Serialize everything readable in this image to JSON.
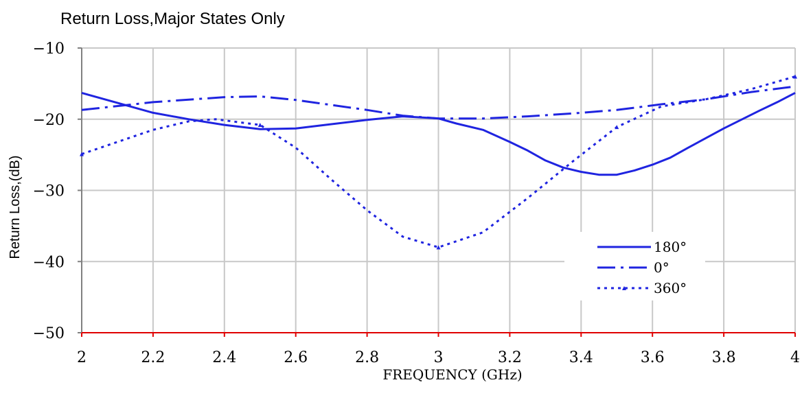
{
  "chart_data": {
    "type": "line",
    "title": "Return Loss,Major States Only",
    "xlabel": "FREQUENCY (GHz)",
    "ylabel": "Return Loss,(dB)",
    "xlim": [
      2,
      4
    ],
    "ylim": [
      -50,
      -10
    ],
    "x_ticks": [
      2,
      2.2,
      2.4,
      2.6,
      2.8,
      3,
      3.2,
      3.4,
      3.6,
      3.8,
      4
    ],
    "x_tick_labels": [
      "2",
      "2.2",
      "2.4",
      "2.6",
      "2.8",
      "3",
      "3.2",
      "3.4",
      "3.6",
      "3.8",
      "4"
    ],
    "y_ticks": [
      -50,
      -40,
      -30,
      -20,
      -10
    ],
    "y_tick_labels": [
      "−50",
      "−40",
      "−30",
      "−20",
      "−10"
    ],
    "grid": true,
    "legend_position": "lower-right",
    "colors": {
      "series": "#1f24e0",
      "grid": "#c8c8c8",
      "baseline": "#e00000",
      "axis": "#808080"
    },
    "series": [
      {
        "name": "180°",
        "style": "solid",
        "x": [
          2.0,
          2.1,
          2.2,
          2.3,
          2.4,
          2.5,
          2.6,
          2.7,
          2.8,
          2.9,
          3.0,
          3.05,
          3.125,
          3.2,
          3.25,
          3.3,
          3.35,
          3.4,
          3.45,
          3.5,
          3.55,
          3.6,
          3.65,
          3.7,
          3.8,
          3.9,
          3.95,
          4.0
        ],
        "y": [
          -16.3,
          -17.7,
          -19.1,
          -20.0,
          -20.8,
          -21.4,
          -21.3,
          -20.7,
          -20.1,
          -19.6,
          -19.9,
          -20.6,
          -21.5,
          -23.2,
          -24.4,
          -25.8,
          -26.8,
          -27.4,
          -27.8,
          -27.8,
          -27.2,
          -26.4,
          -25.4,
          -24.0,
          -21.3,
          -18.8,
          -17.6,
          -16.3
        ]
      },
      {
        "name": "0°",
        "style": "dash-dot",
        "x": [
          2.0,
          2.2,
          2.4,
          2.5,
          2.6,
          2.8,
          2.9,
          3.0,
          3.125,
          3.25,
          3.375,
          3.5,
          3.625,
          3.75,
          3.875,
          4.0
        ],
        "y": [
          -18.7,
          -17.6,
          -16.9,
          -16.8,
          -17.3,
          -18.7,
          -19.5,
          -19.9,
          -19.9,
          -19.6,
          -19.2,
          -18.7,
          -17.9,
          -17.2,
          -16.2,
          -15.4
        ]
      },
      {
        "name": "360°",
        "style": "dotted",
        "x": [
          2.0,
          2.1,
          2.2,
          2.3,
          2.375,
          2.5,
          2.6,
          2.7,
          2.8,
          2.9,
          3.0,
          3.125,
          3.25,
          3.375,
          3.5,
          3.625,
          3.75,
          3.875,
          4.0
        ],
        "y": [
          -24.9,
          -23.2,
          -21.5,
          -20.3,
          -20.0,
          -20.8,
          -24.0,
          -28.5,
          -32.8,
          -36.5,
          -38.0,
          -35.9,
          -31.1,
          -26.0,
          -21.1,
          -18.2,
          -17.2,
          -15.8,
          -14.0
        ]
      }
    ]
  }
}
